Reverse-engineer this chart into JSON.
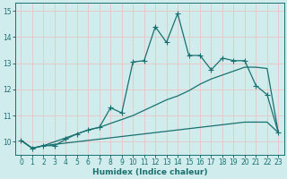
{
  "xlabel": "Humidex (Indice chaleur)",
  "bg_color": "#d0ecec",
  "grid_color": "#b8d8d8",
  "line_color": "#1a7070",
  "xlim": [
    -0.5,
    23.5
  ],
  "ylim": [
    9.5,
    15.3
  ],
  "xticks": [
    0,
    1,
    2,
    3,
    4,
    5,
    6,
    7,
    8,
    9,
    10,
    11,
    12,
    13,
    14,
    15,
    16,
    17,
    18,
    19,
    20,
    21,
    22,
    23
  ],
  "yticks": [
    10,
    11,
    12,
    13,
    14,
    15
  ],
  "spiky_x": [
    0,
    1,
    2,
    3,
    4,
    5,
    6,
    7,
    8,
    9,
    10,
    11,
    12,
    13,
    14,
    15,
    16,
    17,
    18,
    19,
    20,
    21,
    22,
    23
  ],
  "spiky_y": [
    10.05,
    9.75,
    9.85,
    9.85,
    10.1,
    10.3,
    10.45,
    10.55,
    11.3,
    11.1,
    13.05,
    13.1,
    14.4,
    13.8,
    14.9,
    13.3,
    13.3,
    12.75,
    13.2,
    13.1,
    13.1,
    12.15,
    11.8,
    10.35
  ],
  "linear1_x": [
    0,
    1,
    2,
    3,
    4,
    5,
    6,
    7,
    8,
    9,
    10,
    11,
    12,
    13,
    14,
    15,
    16,
    17,
    18,
    19,
    20,
    21,
    22,
    23
  ],
  "linear1_y": [
    10.05,
    9.75,
    9.85,
    10.0,
    10.15,
    10.3,
    10.45,
    10.55,
    10.7,
    10.85,
    11.0,
    11.2,
    11.4,
    11.6,
    11.75,
    11.95,
    12.2,
    12.4,
    12.55,
    12.7,
    12.85,
    12.85,
    12.8,
    10.35
  ],
  "linear2_x": [
    0,
    1,
    2,
    3,
    4,
    5,
    6,
    7,
    8,
    9,
    10,
    11,
    12,
    13,
    14,
    15,
    16,
    17,
    18,
    19,
    20,
    21,
    22,
    23
  ],
  "linear2_y": [
    10.05,
    9.75,
    9.85,
    9.9,
    9.95,
    10.0,
    10.05,
    10.1,
    10.15,
    10.2,
    10.25,
    10.3,
    10.35,
    10.4,
    10.45,
    10.5,
    10.55,
    10.6,
    10.65,
    10.7,
    10.75,
    10.75,
    10.75,
    10.35
  ]
}
